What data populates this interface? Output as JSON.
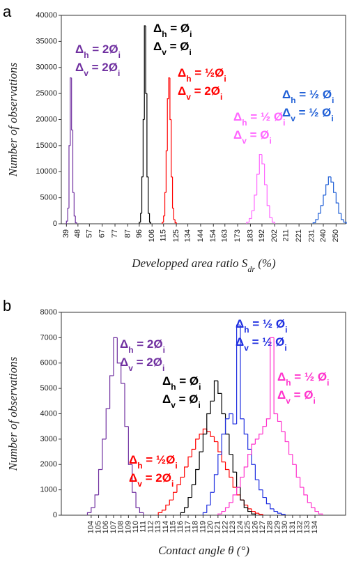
{
  "chart_data": [
    {
      "type": "histogram",
      "panel": "a",
      "ylabel": "Number of observations",
      "xlabel": [
        "Developped area ratio S",
        "dr",
        " (%)"
      ],
      "xlim": [
        35,
        258
      ],
      "xticks": [
        39,
        48,
        57,
        67,
        77,
        87,
        96,
        106,
        115,
        125,
        134,
        144,
        154,
        163,
        173,
        183,
        192,
        202,
        211,
        221,
        231,
        240,
        250
      ],
      "ylim": [
        0,
        40000
      ],
      "yticks": [
        0,
        5000,
        10000,
        15000,
        20000,
        25000,
        30000,
        35000,
        40000
      ],
      "series": [
        {
          "color": "#7030a0",
          "bins": [
            39,
            40,
            41,
            42,
            43,
            44,
            45,
            46,
            47
          ],
          "values": [
            500,
            3000,
            15000,
            28000,
            18000,
            6000,
            1500,
            200
          ],
          "annotation": [
            [
              "Δ",
              "h",
              " = 2Ø",
              "i"
            ],
            [
              "Δ",
              "v",
              " = 2Ø",
              "i"
            ]
          ]
        },
        {
          "color": "#000000",
          "bins": [
            96,
            97,
            98,
            99,
            100,
            101,
            102,
            103,
            104,
            105
          ],
          "values": [
            300,
            2000,
            9000,
            20000,
            38000,
            25000,
            9000,
            2000,
            300
          ],
          "annotation": [
            [
              "Δ",
              "h",
              " = Ø",
              "i"
            ],
            [
              "Δ",
              "v",
              " = Ø",
              "i"
            ]
          ]
        },
        {
          "color": "#ff0000",
          "bins": [
            114,
            115,
            116,
            117,
            118,
            119,
            120,
            121,
            122,
            123,
            124,
            125
          ],
          "values": [
            300,
            1500,
            6000,
            14000,
            24000,
            28000,
            20000,
            9000,
            3000,
            800,
            200
          ],
          "annotation": [
            [
              "Δ",
              "h",
              " = ½Ø",
              "i"
            ],
            [
              "Δ",
              "v",
              " = 2Ø",
              "i"
            ]
          ]
        },
        {
          "color": "#ff66ff",
          "bins": [
            180,
            182,
            184,
            186,
            188,
            190,
            192,
            194,
            196,
            198,
            200,
            202
          ],
          "values": [
            300,
            1000,
            2500,
            5500,
            9500,
            13300,
            11500,
            7500,
            3500,
            1200,
            300
          ],
          "annotation": [
            [
              "Δ",
              "h",
              " = ½ Ø",
              "i"
            ],
            [
              "Δ",
              "v",
              " = Ø",
              "i"
            ]
          ]
        },
        {
          "color": "#1f5fd6",
          "bins": [
            232,
            234,
            236,
            238,
            240,
            242,
            244,
            246,
            248,
            250,
            252,
            254,
            256,
            258
          ],
          "values": [
            200,
            800,
            2000,
            3500,
            5500,
            7500,
            9000,
            8000,
            6000,
            4000,
            2000,
            800,
            300
          ],
          "annotation": [
            [
              "Δ",
              "h",
              " = ½ Ø",
              "i"
            ],
            [
              "Δ",
              "v",
              " = ½ Ø",
              "i"
            ]
          ]
        }
      ]
    },
    {
      "type": "histogram",
      "panel": "b",
      "ylabel": "Number of observations",
      "xlabel": [
        "Contact angle  θ (°)"
      ],
      "xlim": [
        100,
        138.2
      ],
      "xticks": [
        104,
        105,
        106,
        107,
        108,
        109,
        110,
        111,
        112,
        113,
        114,
        115,
        116,
        117,
        118,
        119,
        120,
        121,
        122,
        123,
        124,
        125,
        126,
        127,
        128,
        129,
        130,
        131,
        132,
        133,
        134
      ],
      "ylim": [
        0,
        8000
      ],
      "yticks": [
        0,
        1000,
        2000,
        3000,
        4000,
        5000,
        6000,
        7000,
        8000
      ],
      "series": [
        {
          "color": "#7030a0",
          "bins": [
            103.5,
            104,
            104.5,
            105,
            105.5,
            106,
            106.5,
            107,
            107.5,
            108,
            108.5,
            109,
            109.5,
            110,
            110.5,
            111
          ],
          "values": [
            100,
            300,
            800,
            1800,
            3000,
            4200,
            5500,
            7000,
            6000,
            5200,
            3500,
            2000,
            900,
            300,
            100
          ],
          "annotation": [
            [
              "Δ",
              "h",
              " = 2Ø",
              "i"
            ],
            [
              "Δ",
              "v",
              " = 2Ø",
              "i"
            ]
          ]
        },
        {
          "color": "#ff0000",
          "bins": [
            113,
            113.5,
            114,
            114.5,
            115,
            115.5,
            116,
            116.5,
            117,
            117.5,
            118,
            118.5,
            119,
            119.5,
            120,
            120.5,
            121,
            121.5,
            122,
            122.5,
            123,
            123.5,
            124,
            124.5,
            125,
            125.5,
            126,
            126.5,
            127
          ],
          "values": [
            100,
            200,
            400,
            600,
            900,
            1200,
            1500,
            1900,
            2300,
            2600,
            3000,
            3200,
            3400,
            3300,
            3100,
            2900,
            2500,
            2100,
            1800,
            1500,
            1100,
            800,
            600,
            400,
            250,
            150,
            80,
            30
          ],
          "annotation": [
            [
              "Δ",
              "h",
              " = ½Ø",
              "i"
            ],
            [
              "Δ",
              "v",
              " = 2Ø",
              "i"
            ]
          ]
        },
        {
          "color": "#000000",
          "bins": [
            116,
            116.5,
            117,
            117.5,
            118,
            118.5,
            119,
            119.5,
            120,
            120.5,
            121,
            121.5,
            122,
            122.5,
            123,
            123.5,
            124,
            124.5,
            125,
            125.5,
            126
          ],
          "values": [
            100,
            300,
            700,
            1200,
            1800,
            2500,
            3200,
            4000,
            4500,
            5300,
            4800,
            4000,
            3200,
            2400,
            1700,
            1100,
            600,
            300,
            150,
            50
          ],
          "annotation": [
            [
              "Δ",
              "h",
              " = Ø",
              "i"
            ],
            [
              "Δ",
              "v",
              " = Ø",
              "i"
            ]
          ]
        },
        {
          "color": "#1f2fe0",
          "bins": [
            119,
            119.5,
            120,
            120.5,
            121,
            121.5,
            122,
            122.5,
            123,
            123.5,
            124,
            124.5,
            125,
            125.5,
            126,
            126.5,
            127,
            127.5,
            128,
            128.5,
            129,
            129.5,
            130
          ],
          "values": [
            100,
            400,
            900,
            1600,
            2400,
            3200,
            3800,
            4000,
            3600,
            7500,
            3800,
            3200,
            2600,
            2000,
            1400,
            1000,
            700,
            450,
            250,
            150,
            80,
            30
          ],
          "annotation": [
            [
              "Δ",
              "h",
              " = ½ Ø",
              "i"
            ],
            [
              "Δ",
              "v",
              " = ½ Ø",
              "i"
            ]
          ]
        },
        {
          "color": "#ff33cc",
          "bins": [
            121,
            121.5,
            122,
            122.5,
            123,
            123.5,
            124,
            124.5,
            125,
            125.5,
            126,
            126.5,
            127,
            127.5,
            128,
            128.5,
            129,
            129.5,
            130,
            130.5,
            131,
            131.5,
            132,
            132.5,
            133,
            133.5,
            134,
            134.5,
            135
          ],
          "values": [
            50,
            150,
            300,
            500,
            800,
            1100,
            1500,
            1900,
            2400,
            2800,
            3000,
            3200,
            3500,
            3800,
            7000,
            4000,
            3700,
            3300,
            2900,
            2400,
            2000,
            1500,
            1100,
            800,
            500,
            300,
            150,
            50
          ],
          "annotation": [
            [
              "Δ",
              "h",
              " = ½ Ø",
              "i"
            ],
            [
              "Δ",
              "v",
              " = Ø",
              "i"
            ]
          ]
        }
      ]
    }
  ]
}
